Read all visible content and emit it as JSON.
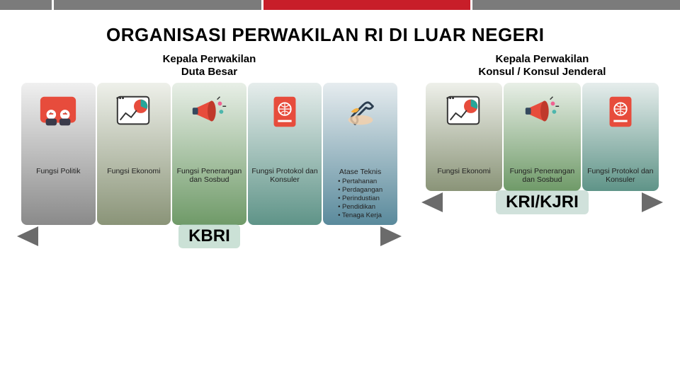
{
  "title": "ORGANISASI PERWAKILAN RI DI LUAR NEGERI",
  "topbar_colors": [
    "#7b7b7b",
    "#7b7b7b",
    "#c81e29",
    "#7b7b7b"
  ],
  "left": {
    "subtitle_line1": "Kepala Perwakilan",
    "subtitle_line2": "Duta Besar",
    "bigname": "KBRI",
    "bigname_bg": "rgba(160,200,180,0.55)",
    "arrow_color": "#6b6b6b",
    "columns": [
      {
        "label": "Fungsi Politik",
        "gradient_top": "#f0f0f0",
        "gradient_bot": "#8a8a8a",
        "icon": "people"
      },
      {
        "label": "Fungsi Ekonomi",
        "gradient_top": "#eef0ea",
        "gradient_bot": "#8a9478",
        "icon": "chart"
      },
      {
        "label": "Fungsi Penerangan dan Sosbud",
        "gradient_top": "#e8efe7",
        "gradient_bot": "#6f9a68",
        "icon": "megaphone"
      },
      {
        "label": "Fungsi Protokol dan Konsuler",
        "gradient_top": "#e6edec",
        "gradient_bot": "#5f9488",
        "icon": "passport"
      },
      {
        "header": "Atase Teknis",
        "bullets": [
          "Pertahanan",
          "Perdagangan",
          "Perindustian",
          "Pendidikan",
          "Tenaga Kerja"
        ],
        "gradient_top": "#e6ecef",
        "gradient_bot": "#5a8a9c",
        "icon": "wrench"
      }
    ]
  },
  "right": {
    "subtitle_line1": "Kepala Perwakilan",
    "subtitle_line2": "Konsul / Konsul Jenderal",
    "bigname": "KRI/KJRI",
    "bigname_bg": "rgba(170,200,190,0.55)",
    "arrow_color": "#6b6b6b",
    "columns": [
      {
        "label": "Fungsi Ekonomi",
        "gradient_top": "#eef0ea",
        "gradient_bot": "#8a9478",
        "icon": "chart"
      },
      {
        "label": "Fungsi Penerangan dan Sosbud",
        "gradient_top": "#e8efe7",
        "gradient_bot": "#6f9a68",
        "icon": "megaphone"
      },
      {
        "label": "Fungsi Protokol dan Konsuler",
        "gradient_top": "#e6edec",
        "gradient_bot": "#5f9488",
        "icon": "passport"
      }
    ]
  },
  "icons": {
    "people": "<svg viewBox='0 0 60 60'><rect x='4' y='8' width='52' height='38' rx='6' fill='#e74c3c'/><circle cx='20' cy='34' r='7' fill='#fff'/><circle cx='40' cy='34' r='7' fill='#fff'/><rect x='12' y='40' width='16' height='10' rx='3' fill='#3a3a4a'/><rect x='32' y='40' width='16' height='10' rx='3' fill='#3a3a4a'/><path d='M20 31 l-3 3 M40 31 l3 3' stroke='#333' stroke-width='1'/><rect x='17' y='32' width='6' height='2' fill='#e74c3c'/><rect x='37' y='32' width='6' height='2' fill='#e74c3c'/></svg>",
    "chart": "<svg viewBox='0 0 60 60'><rect x='6' y='8' width='46' height='40' rx='4' fill='#fff' stroke='#333' stroke-width='2'/><circle cx='40' cy='22' r='10' fill='#e74c3c'/><path d='M40 22 L40 12 A10 10 0 0 1 49 26 Z' fill='#26a69a'/><path d='M10 42 L18 32 L26 38 L34 28' stroke='#333' stroke-width='2' fill='none'/><circle cx='6' cy='10' r='1.5' fill='#333'/><circle cx='10' cy='10' r='1.5' fill='#333'/><circle cx='14' cy='10' r='1.5' fill='#333'/></svg>",
    "megaphone": "<svg viewBox='0 0 60 60'><path d='M12 24 L34 14 L34 44 L12 34 Z' fill='#e74c3c'/><ellipse cx='34' cy='29' rx='6' ry='15' fill='#c0392b'/><rect x='6' y='24' width='8' height='10' rx='2' fill='#34495e'/><circle cx='46' cy='18' r='3' fill='#f06292'/><circle cx='48' cy='30' r='3' fill='#4db6ac'/><path d='M42 12 l4 -4 M50 22 l5 0' stroke='#333' stroke-width='1.5'/></svg>",
    "passport": "<svg viewBox='0 0 60 60'><rect x='14' y='8' width='32' height='44' rx='4' fill='#e74c3c'/><circle cx='30' cy='26' r='9' fill='none' stroke='#fff' stroke-width='2'/><path d='M21 26 h18 M30 17 v18 M24 20 q6 6 12 0 M24 32 q6 -6 12 0' stroke='#fff' stroke-width='1.2' fill='none'/><rect x='20' y='42' width='20' height='3' fill='#fff'/></svg>",
    "wrench": "<svg viewBox='0 0 60 60'><path d='M18 44 Q14 40 20 34 L34 20 Q40 14 44 18 L48 22 Q44 28 38 24 L24 38 Q28 44 22 48 Z' fill='none' stroke='#2c3e50' stroke-width='3' stroke-linejoin='round'/><path d='M16 30 Q24 22 28 26 Q24 34 16 30' fill='#f5b041'/><ellipse cx='30' cy='42' rx='18' ry='7' fill='#f5d0a9' opacity='0.8'/></svg>"
  }
}
